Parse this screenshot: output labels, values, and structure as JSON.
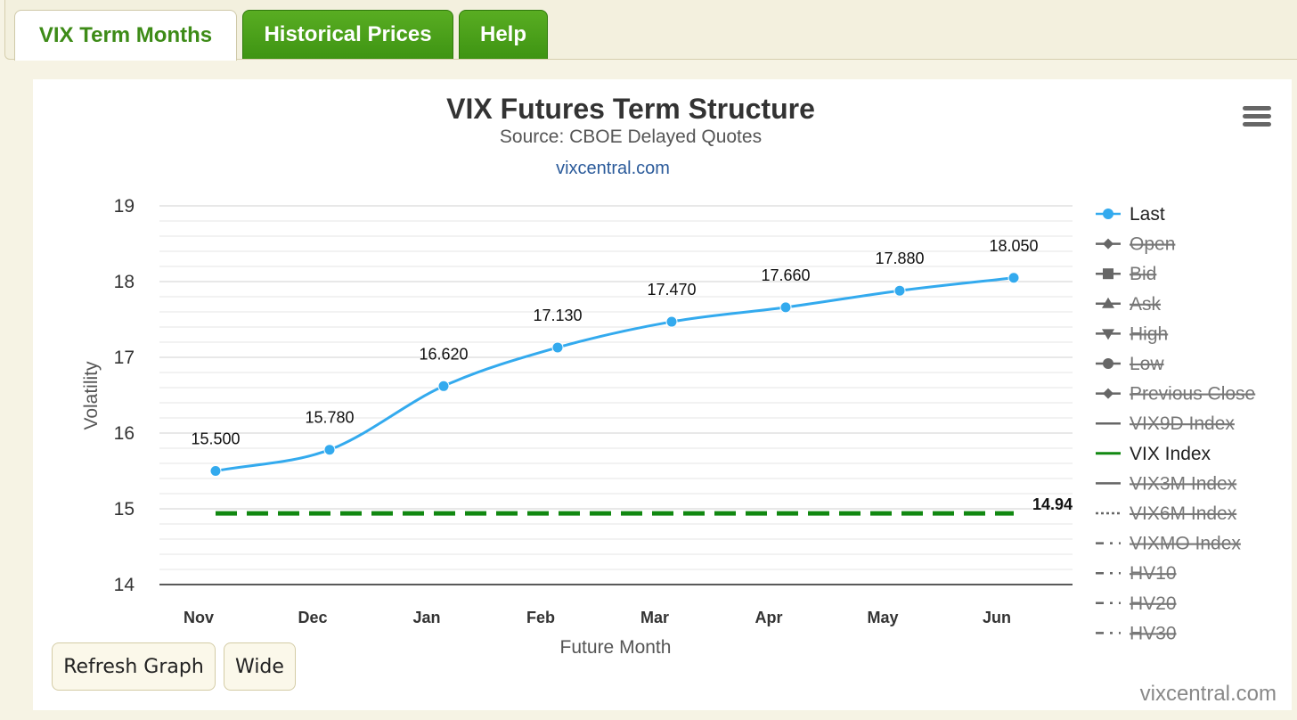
{
  "tabs": [
    {
      "label": "VIX Term Months"
    },
    {
      "label": "Historical Prices"
    },
    {
      "label": "Help"
    }
  ],
  "buttons": {
    "refresh_label": "Refresh Graph",
    "wide_label": "Wide"
  },
  "credit": "vixcentral.com",
  "colors": {
    "last_series": "#33aaee",
    "vix_index": "#118811",
    "legend_hidden": "#666666",
    "tab_green": "#3e9413"
  },
  "chart_data": {
    "type": "line",
    "title": "VIX Futures Term Structure",
    "subtitle": "Source: CBOE Delayed Quotes",
    "source_link": "vixcentral.com",
    "xlabel": "Future Month",
    "ylabel": "Volatility",
    "ylim": [
      14,
      19
    ],
    "yticks": [
      "14",
      "15",
      "16",
      "17",
      "18",
      "19"
    ],
    "categories": [
      "Nov",
      "Dec",
      "Jan",
      "Feb",
      "Mar",
      "Apr",
      "May",
      "Jun"
    ],
    "grid": true,
    "legend_position": "right",
    "series": [
      {
        "name": "Last",
        "values": [
          15.5,
          15.78,
          16.62,
          17.13,
          17.47,
          17.66,
          17.88,
          18.05
        ],
        "labels": [
          "15.500",
          "15.780",
          "16.620",
          "17.130",
          "17.470",
          "17.660",
          "17.880",
          "18.050"
        ]
      },
      {
        "name": "VIX Index",
        "value": 14.94,
        "label": "14.94",
        "style": "dashed"
      }
    ],
    "legend": [
      {
        "name": "Last",
        "symbol": "circle-line",
        "visible": true
      },
      {
        "name": "Open",
        "symbol": "diamond-line",
        "visible": false
      },
      {
        "name": "Bid",
        "symbol": "square-line",
        "visible": false
      },
      {
        "name": "Ask",
        "symbol": "triangle-line",
        "visible": false
      },
      {
        "name": "High",
        "symbol": "triangle-down-line",
        "visible": false
      },
      {
        "name": "Low",
        "symbol": "circle-line",
        "visible": false
      },
      {
        "name": "Previous Close",
        "symbol": "diamond-line",
        "visible": false
      },
      {
        "name": "VIX9D Index",
        "symbol": "solid-line",
        "visible": false
      },
      {
        "name": "VIX Index",
        "symbol": "solid-line",
        "visible": true
      },
      {
        "name": "VIX3M Index",
        "symbol": "solid-line",
        "visible": false
      },
      {
        "name": "VIX6M Index",
        "symbol": "dotted-line",
        "visible": false
      },
      {
        "name": "VIXMO Index",
        "symbol": "dashdot-line",
        "visible": false
      },
      {
        "name": "HV10",
        "symbol": "dashdot-line",
        "visible": false
      },
      {
        "name": "HV20",
        "symbol": "dashdot-line",
        "visible": false
      },
      {
        "name": "HV30",
        "symbol": "dashdot-line",
        "visible": false
      }
    ]
  }
}
